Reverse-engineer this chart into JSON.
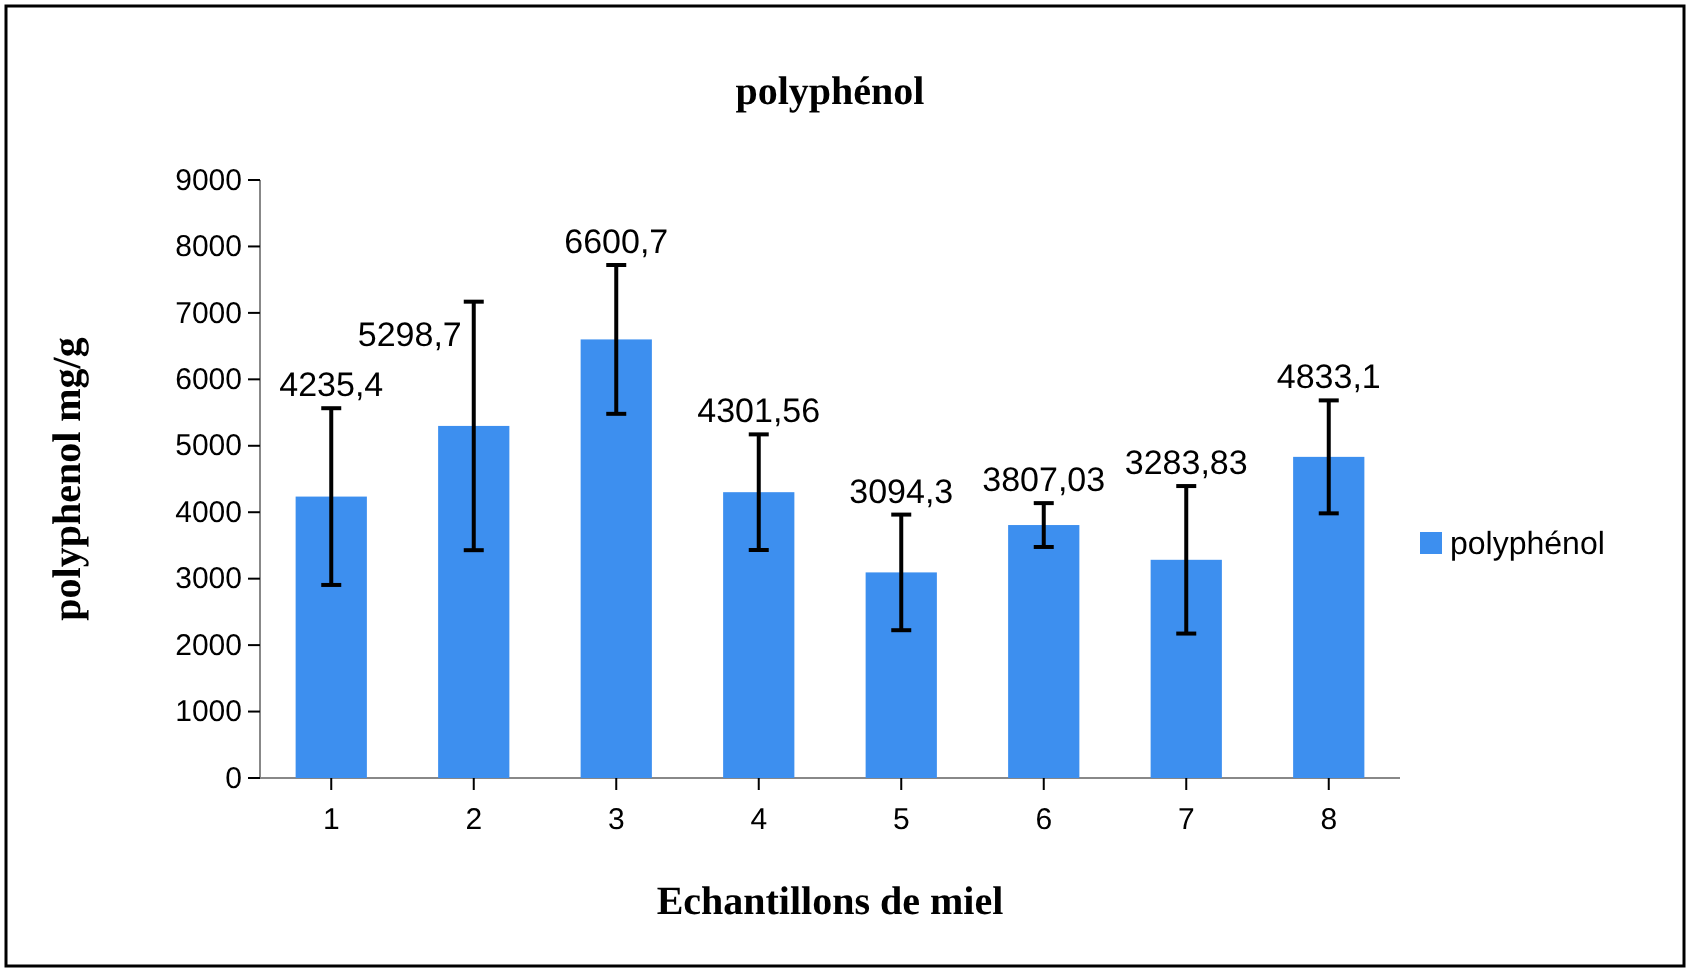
{
  "chart_data": {
    "type": "bar",
    "title": "polyphénol",
    "xlabel": "Echantillons de miel",
    "ylabel": "polyphenol mg/g",
    "categories": [
      "1",
      "2",
      "3",
      "4",
      "5",
      "6",
      "7",
      "8"
    ],
    "series": [
      {
        "name": "polyphénol",
        "color": "#3d8fef",
        "values": [
          4235.4,
          5298.7,
          6600.7,
          4301.56,
          3094.3,
          3807.03,
          3283.83,
          4833.1
        ],
        "errors": [
          1330,
          1870,
          1120,
          870,
          870,
          330,
          1110,
          850
        ],
        "value_labels": [
          "4235,4",
          "5298,7",
          "6600,7",
          "4301,56",
          "3094,3",
          "3807,03",
          "3283,83",
          "4833,1"
        ]
      }
    ],
    "ylim": [
      0,
      9000
    ],
    "yticks": [
      0,
      1000,
      2000,
      3000,
      4000,
      5000,
      6000,
      7000,
      8000,
      9000
    ],
    "grid": false,
    "legend": "right"
  }
}
